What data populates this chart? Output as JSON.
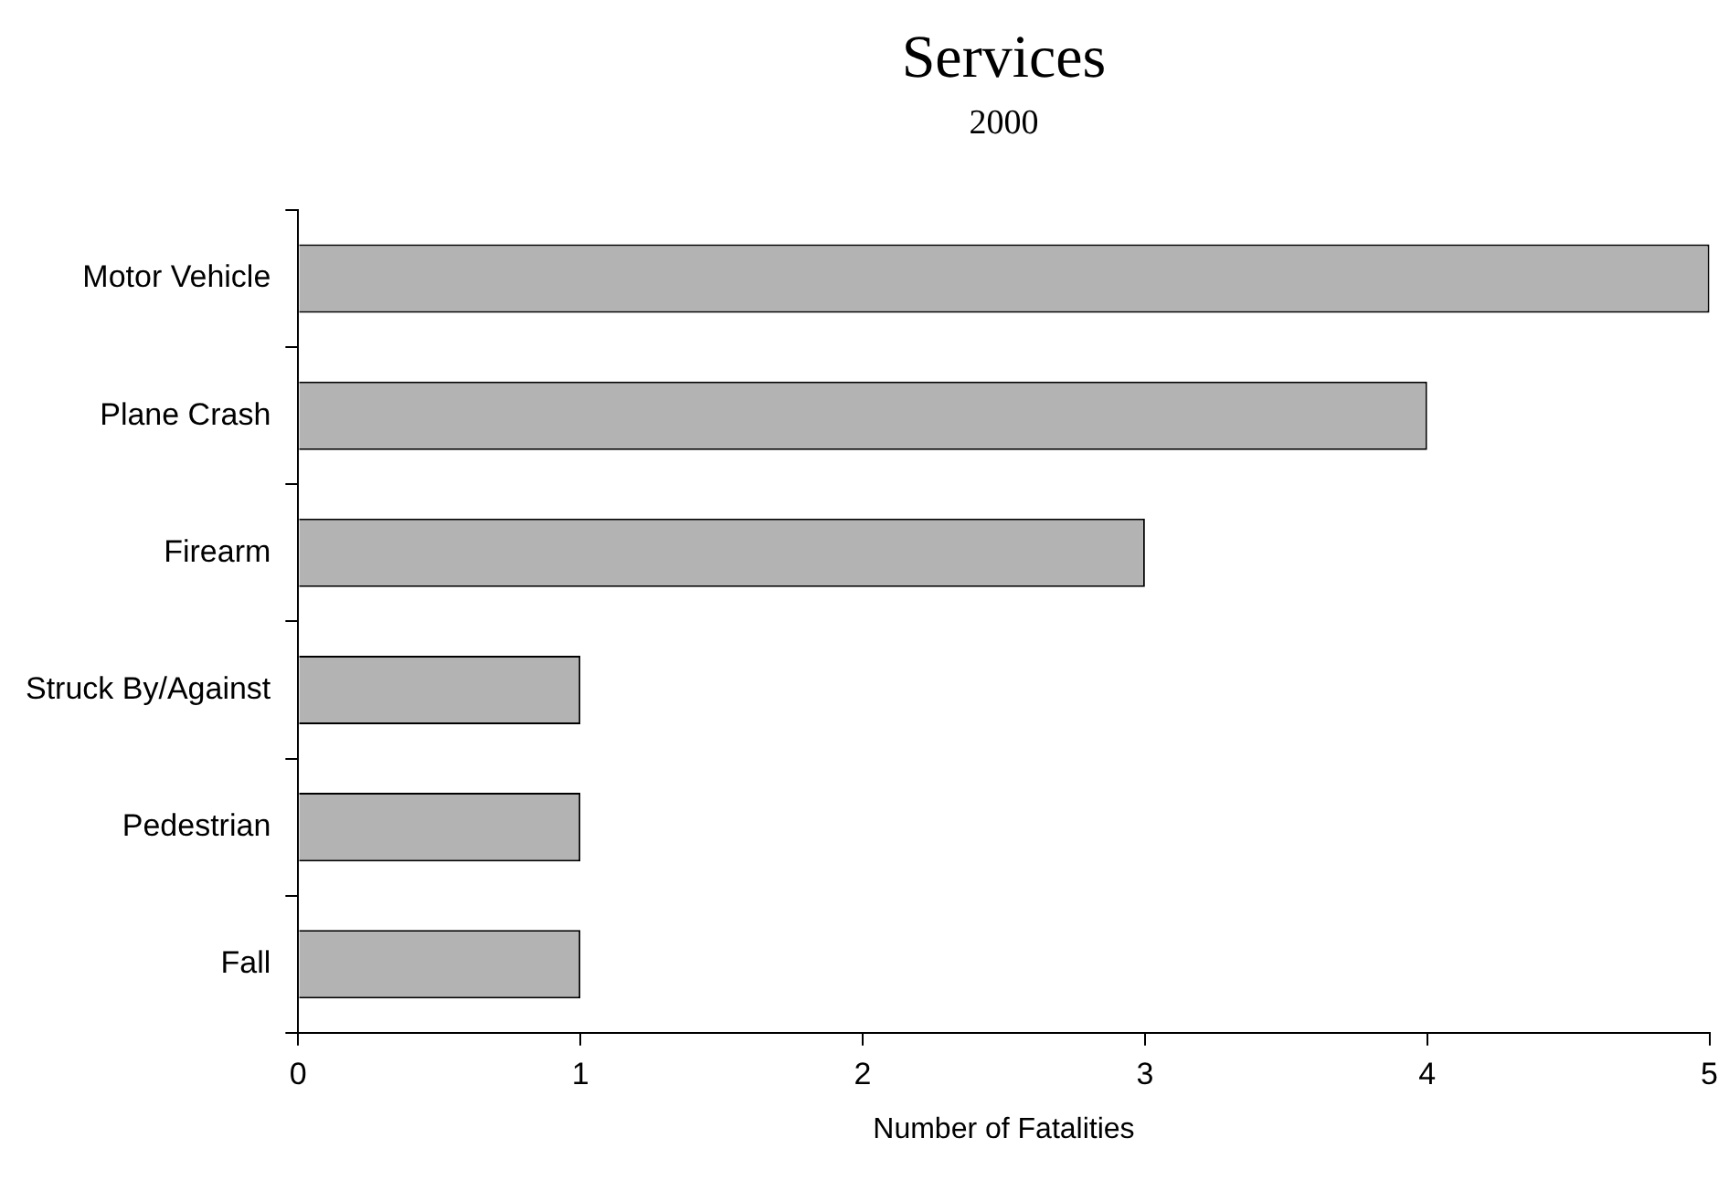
{
  "chart_data": {
    "type": "bar",
    "orientation": "horizontal",
    "title": "Services",
    "subtitle": "2000",
    "xlabel": "Number of Fatalities",
    "categories": [
      "Motor Vehicle",
      "Plane Crash",
      "Firearm",
      "Struck By/Against",
      "Pedestrian",
      "Fall"
    ],
    "values": [
      5,
      4,
      3,
      1,
      1,
      1
    ],
    "color": "#b3b3b3",
    "xlim": [
      0,
      5
    ],
    "xticks": [
      0,
      1,
      2,
      3,
      4,
      5
    ],
    "grid": false,
    "legend": false
  }
}
